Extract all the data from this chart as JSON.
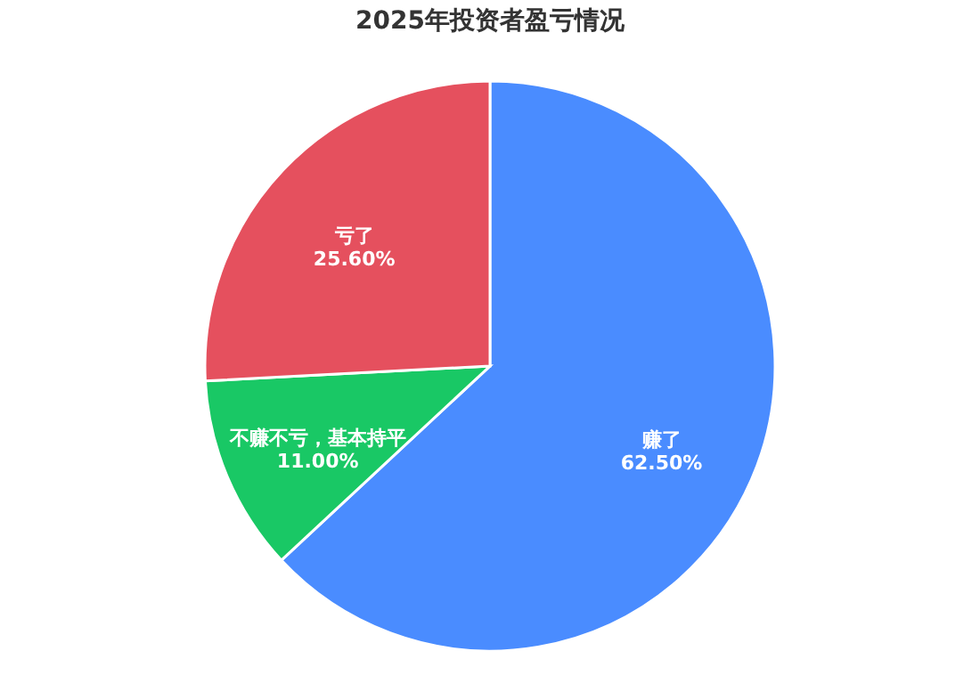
{
  "chart_data": {
    "type": "pie",
    "title": "2025年投资者盈亏情况",
    "categories": [
      "赚了",
      "不赚不亏，基本持平",
      "亏了"
    ],
    "values": [
      62.5,
      11.0,
      25.6
    ],
    "colors": [
      "#4a8cff",
      "#19c865",
      "#e5505e"
    ],
    "value_labels": [
      "62.50%",
      "11.00%",
      "25.60%"
    ],
    "legend": false
  }
}
